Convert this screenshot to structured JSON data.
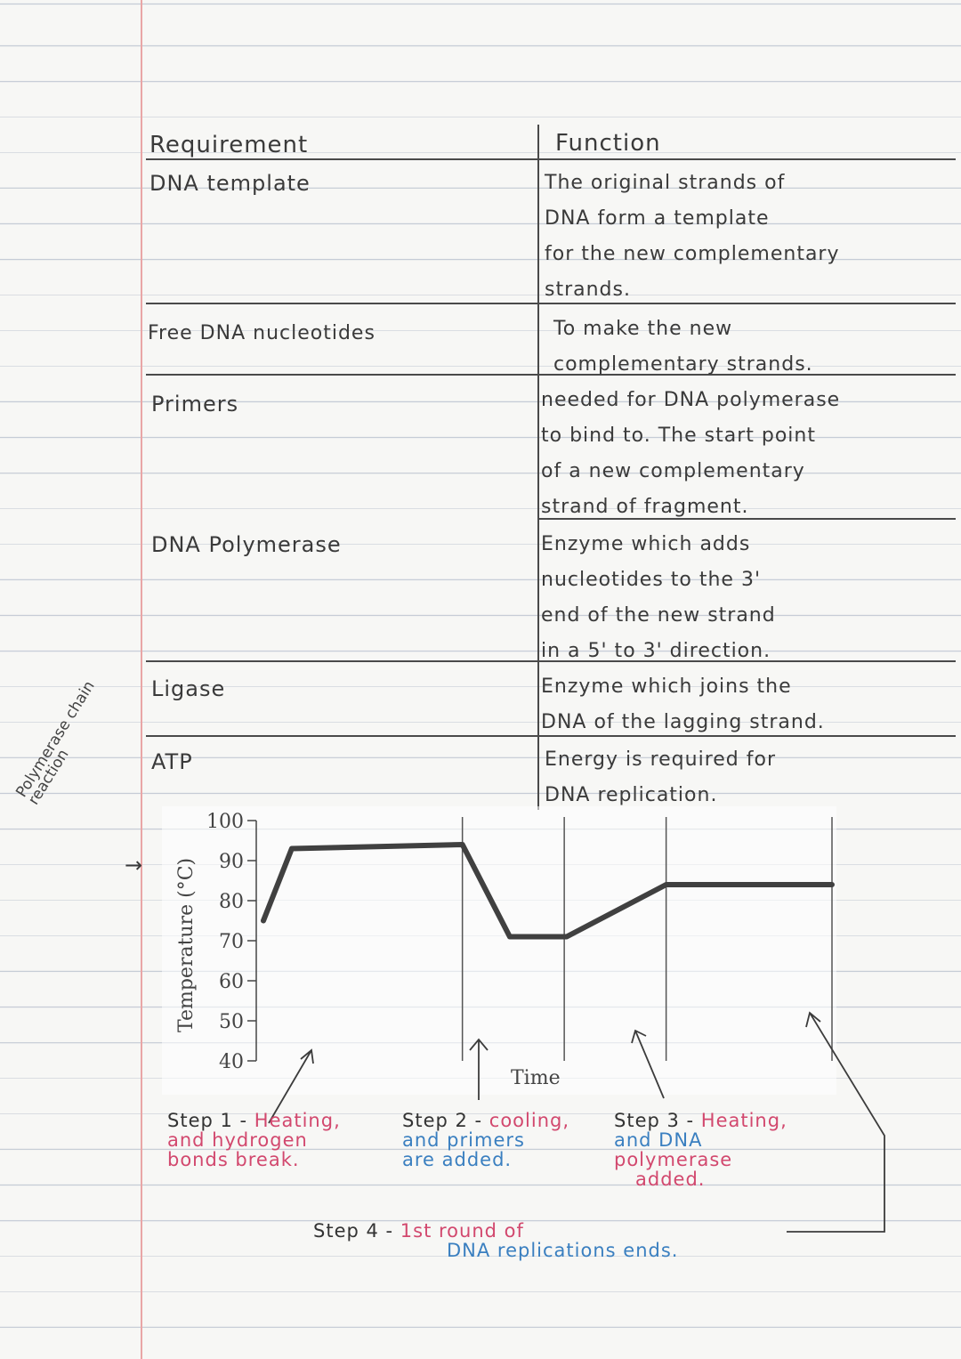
{
  "table": {
    "header_requirement": "Requirement",
    "header_function": "Function",
    "rows": [
      {
        "requirement": "DNA template",
        "function": "The original strands of\nDNA form a template\nfor the new complementary\nstrands."
      },
      {
        "requirement": "Free DNA nucleotides",
        "function": "To make the new\ncomplementary strands."
      },
      {
        "requirement": "Primers",
        "function": "needed for DNA polymerase\nto bind to. The start point\nof a new complementary\nstrand of fragment."
      },
      {
        "requirement": "DNA Polymerase",
        "function": "Enzyme which adds\nnucleotides to the 3'\nend of the new strand\nin a 5' to 3' direction."
      },
      {
        "requirement": "Ligase",
        "function": "Enzyme which joins the\nDNA of the lagging strand."
      },
      {
        "requirement": "ATP",
        "function": "Energy is required for\nDNA replication."
      }
    ]
  },
  "side_note": "Polymerase chain reaction",
  "side_arrow": "→",
  "chart_data": {
    "type": "line",
    "ylabel": "Temperature (°C)",
    "xlabel": "Time",
    "yticks": [
      100,
      90,
      80,
      70,
      60,
      50,
      40
    ],
    "ylim": [
      40,
      100
    ],
    "x": [
      0,
      0.6,
      4.2,
      5.2,
      6.4,
      8.5,
      12
    ],
    "values": [
      75,
      93,
      94,
      71,
      71,
      84,
      84
    ],
    "step_dividers": [
      4.2,
      8.5,
      12
    ],
    "color": "#404040"
  },
  "steps": {
    "step1": {
      "prefix": "Step 1 - ",
      "line1": "Heating,",
      "line2": "and hydrogen",
      "line3": "bonds break."
    },
    "step2": {
      "prefix": "Step 2 - ",
      "line1": "cooling,",
      "line2": "and primers",
      "line3": "are added."
    },
    "step3": {
      "prefix": "Step 3 - ",
      "line1": "Heating,",
      "line2": "and DNA",
      "line3": "polymerase",
      "line4": "added."
    },
    "step4": {
      "prefix": "Step 4 - ",
      "line1": "1st round of",
      "line2": "DNA replications ends."
    }
  },
  "colors": {
    "pink": "#d2486e",
    "blue": "#3a7fc0",
    "ink": "#3a3a3a",
    "margin": "#e9a6a6"
  }
}
